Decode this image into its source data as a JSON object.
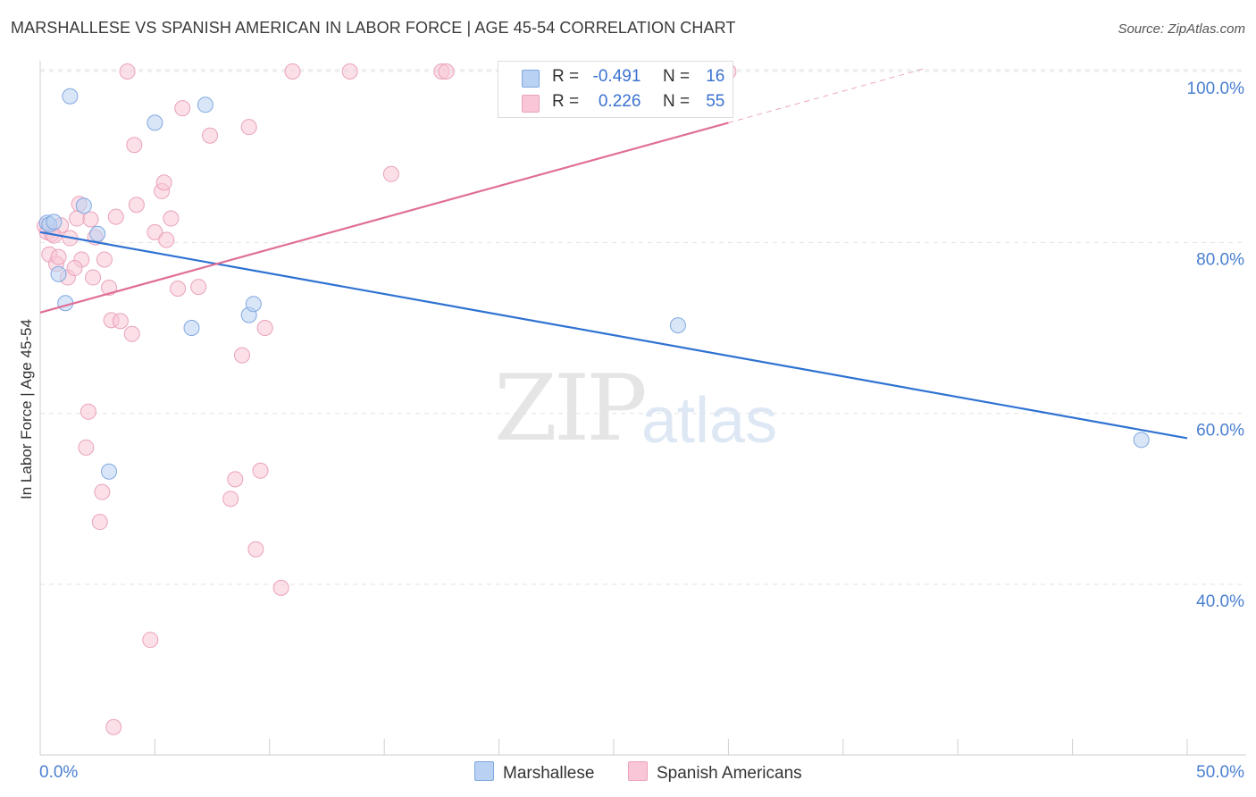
{
  "header": {
    "title": "MARSHALLESE VS SPANISH AMERICAN IN LABOR FORCE | AGE 45-54 CORRELATION CHART",
    "source": "Source: ZipAtlas.com"
  },
  "watermark": {
    "zip": "ZIP",
    "atlas": "atlas"
  },
  "legend": {
    "rows": [
      {
        "r_label": "R =",
        "r_value": "-0.491",
        "n_label": "N =",
        "n_value": "16"
      },
      {
        "r_label": "R =",
        "r_value": "0.226",
        "n_label": "N =",
        "n_value": "55"
      }
    ],
    "bottom": [
      "Marshallese",
      "Spanish Americans"
    ]
  },
  "colors": {
    "marshallese_fill": "#b9d1f3",
    "marshallese_stroke": "#7fa8e0",
    "marshallese_line": "#2e72d2",
    "spanish_fill": "#f8c6d6",
    "spanish_stroke": "#eaa2bb",
    "spanish_line": "#e06e95",
    "axis_text": "#4a7fd0",
    "grid": "#e2e2e2"
  },
  "chart_data": {
    "type": "scatter",
    "title": "MARSHALLESE VS SPANISH AMERICAN IN LABOR FORCE | AGE 45-54 CORRELATION CHART",
    "xlabel": "",
    "ylabel": "In Labor Force | Age 45-54",
    "xlim": [
      0,
      50
    ],
    "ylim": [
      22,
      102
    ],
    "x_tick_labels": [
      "0.0%",
      "50.0%"
    ],
    "y_ticks": [
      40,
      60,
      80,
      100
    ],
    "y_tick_labels": [
      "40.0%",
      "60.0%",
      "80.0%",
      "100.0%"
    ],
    "grid": true,
    "series": [
      {
        "name": "Marshallese",
        "r": -0.491,
        "n": 16,
        "trend": {
          "x": [
            0,
            50
          ],
          "y": [
            81.2,
            57.1
          ]
        },
        "points": [
          [
            0.3,
            82.3
          ],
          [
            0.4,
            82.1
          ],
          [
            0.6,
            82.4
          ],
          [
            0.8,
            76.3
          ],
          [
            1.1,
            72.9
          ],
          [
            1.3,
            97.1
          ],
          [
            1.9,
            84.3
          ],
          [
            2.5,
            81.0
          ],
          [
            3.0,
            53.2
          ],
          [
            5.0,
            94.0
          ],
          [
            6.6,
            70.0
          ],
          [
            7.2,
            96.1
          ],
          [
            9.1,
            71.5
          ],
          [
            9.3,
            72.8
          ],
          [
            27.8,
            70.3
          ],
          [
            48.0,
            56.9
          ]
        ]
      },
      {
        "name": "Spanish Americans",
        "r": 0.226,
        "n": 55,
        "trend": {
          "x": [
            0,
            30
          ],
          "y": [
            71.8,
            94.0
          ]
        },
        "trend_extension": {
          "x": [
            30,
            38.5
          ],
          "y": [
            94.0,
            100.3
          ]
        },
        "points": [
          [
            0.2,
            81.9
          ],
          [
            0.3,
            81.2
          ],
          [
            0.4,
            78.6
          ],
          [
            0.5,
            81.0
          ],
          [
            0.7,
            77.5
          ],
          [
            0.8,
            78.3
          ],
          [
            0.9,
            82.0
          ],
          [
            1.2,
            75.9
          ],
          [
            1.3,
            80.5
          ],
          [
            1.6,
            82.8
          ],
          [
            1.7,
            84.5
          ],
          [
            1.8,
            78.0
          ],
          [
            2.1,
            60.2
          ],
          [
            2.0,
            56.0
          ],
          [
            2.2,
            82.7
          ],
          [
            2.3,
            75.9
          ],
          [
            2.4,
            80.6
          ],
          [
            2.6,
            47.3
          ],
          [
            2.7,
            50.8
          ],
          [
            2.8,
            78.0
          ],
          [
            3.0,
            74.7
          ],
          [
            3.1,
            70.9
          ],
          [
            3.3,
            83.0
          ],
          [
            3.5,
            70.8
          ],
          [
            3.8,
            100.0
          ],
          [
            4.0,
            69.3
          ],
          [
            4.1,
            91.4
          ],
          [
            4.2,
            84.4
          ],
          [
            4.8,
            33.5
          ],
          [
            5.0,
            81.2
          ],
          [
            5.3,
            86.0
          ],
          [
            5.4,
            87.0
          ],
          [
            5.5,
            80.3
          ],
          [
            5.7,
            82.8
          ],
          [
            6.0,
            74.6
          ],
          [
            6.2,
            95.7
          ],
          [
            6.9,
            74.8
          ],
          [
            7.4,
            92.5
          ],
          [
            8.3,
            50.0
          ],
          [
            8.5,
            52.3
          ],
          [
            8.8,
            66.8
          ],
          [
            9.1,
            93.5
          ],
          [
            9.4,
            44.1
          ],
          [
            9.6,
            53.3
          ],
          [
            9.8,
            70.0
          ],
          [
            10.5,
            39.6
          ],
          [
            11.0,
            100.0
          ],
          [
            13.5,
            100.0
          ],
          [
            15.3,
            88.0
          ],
          [
            17.5,
            100.0
          ],
          [
            17.7,
            100.0
          ],
          [
            30.0,
            100.0
          ],
          [
            3.2,
            23.3
          ],
          [
            1.5,
            77.0
          ],
          [
            0.6,
            80.8
          ]
        ]
      }
    ]
  }
}
